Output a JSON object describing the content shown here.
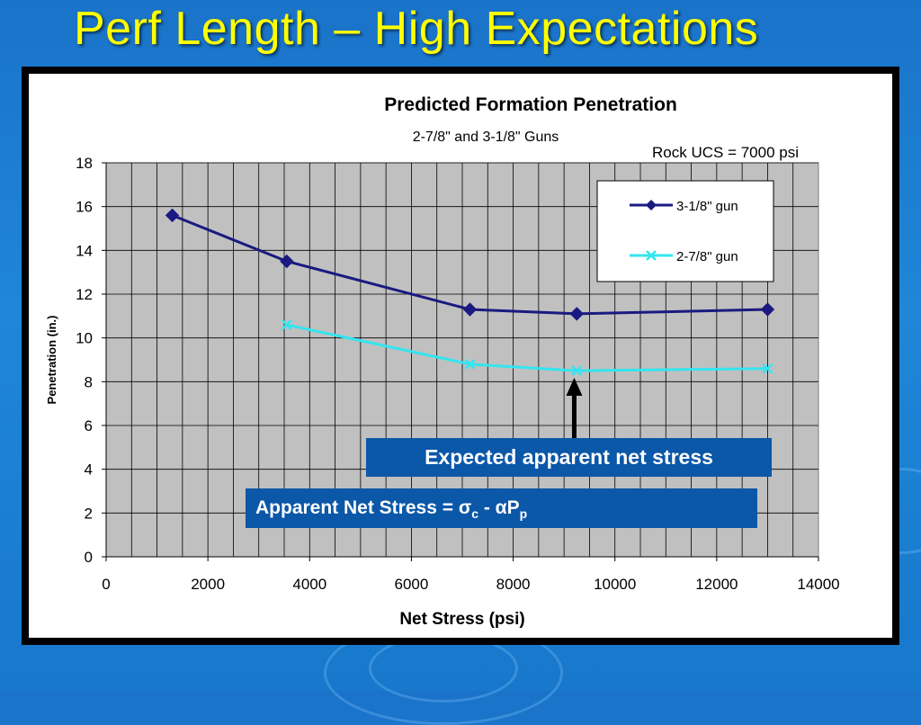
{
  "slide": {
    "title": "Perf Length – High Expectations"
  },
  "colors": {
    "background": "#1a73c9",
    "title": "#ffff00",
    "plot_area": "#c0c0c0",
    "series_1": "#1a1a80",
    "series_2": "#33e5f0",
    "callout": "#0b57a8"
  },
  "chart_data": {
    "type": "line",
    "title": "Predicted Formation Penetration",
    "subtitle": "2-7/8\" and 3-1/8\" Guns",
    "annotation": "Rock UCS = 7000 psi",
    "xlabel": "Net Stress (psi)",
    "ylabel": "Penetration (in.)",
    "xlim": [
      0,
      14000
    ],
    "ylim": [
      0,
      18
    ],
    "x_ticks": [
      0,
      2000,
      4000,
      6000,
      8000,
      10000,
      12000,
      14000
    ],
    "y_ticks": [
      0,
      2,
      4,
      6,
      8,
      10,
      12,
      14,
      16,
      18
    ],
    "grid": true,
    "legend_position": "top-right",
    "series": [
      {
        "name": "3-1/8\" gun",
        "marker": "diamond",
        "color": "#1a1a80",
        "points": [
          [
            1300,
            15.6
          ],
          [
            3550,
            13.5
          ],
          [
            7150,
            11.3
          ],
          [
            9250,
            11.1
          ],
          [
            13000,
            11.3
          ]
        ]
      },
      {
        "name": "2-7/8\" gun",
        "marker": "x",
        "color": "#33e5f0",
        "points": [
          [
            3550,
            10.6
          ],
          [
            7150,
            8.8
          ],
          [
            9250,
            8.5
          ],
          [
            13000,
            8.6
          ]
        ]
      }
    ],
    "arrow_points_to_x": 9200
  },
  "callouts": {
    "expected": "Expected apparent net stress",
    "formula_prefix": "Apparent Net Stress = ",
    "sigma": "σ",
    "sigma_sub": "c",
    "minus": " - ",
    "alpha": "α",
    "p": "P",
    "p_sub": "p"
  }
}
